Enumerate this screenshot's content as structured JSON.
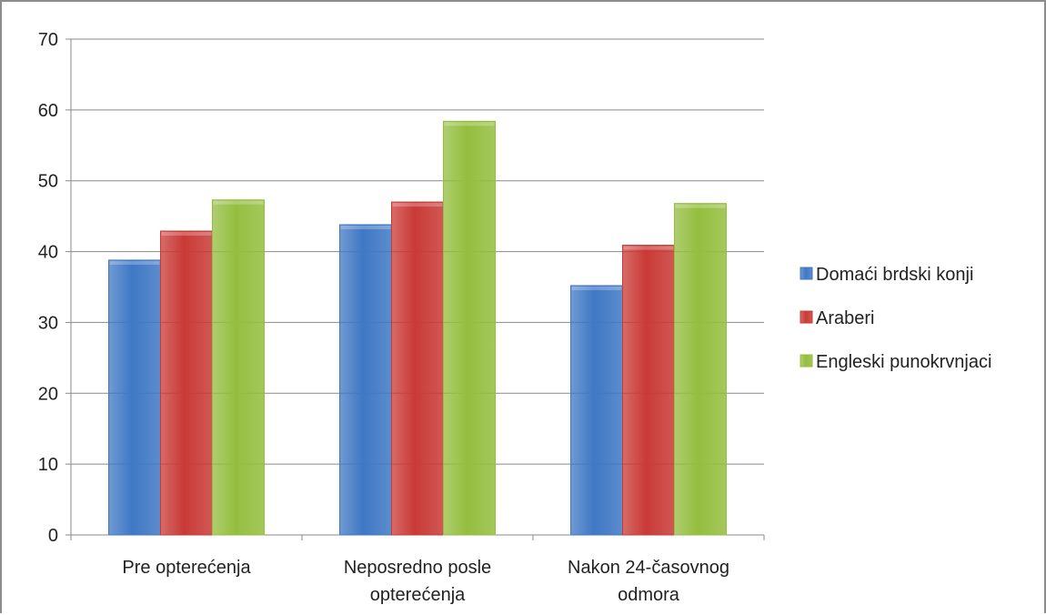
{
  "chart_data": {
    "type": "bar",
    "categories": [
      [
        "Pre opterećenja"
      ],
      [
        "Neposredno posle",
        "opterećenja"
      ],
      [
        "Nakon 24-časovnog",
        "odmora"
      ]
    ],
    "series": [
      {
        "name": "Domaći brdski konji",
        "color": "#3f78c4",
        "values": [
          38.8,
          43.8,
          35.2
        ]
      },
      {
        "name": "Araberi",
        "color": "#c93a36",
        "values": [
          42.9,
          47.0,
          40.9
        ]
      },
      {
        "name": "Engleski punokrvnjaci",
        "color": "#94be3f",
        "values": [
          47.3,
          58.4,
          46.8
        ]
      }
    ],
    "ylim": [
      0,
      70
    ],
    "yticks": [
      0,
      10,
      20,
      30,
      40,
      50,
      60,
      70
    ],
    "grid": true,
    "legend": "right",
    "title": "",
    "xlabel": "",
    "ylabel": ""
  }
}
